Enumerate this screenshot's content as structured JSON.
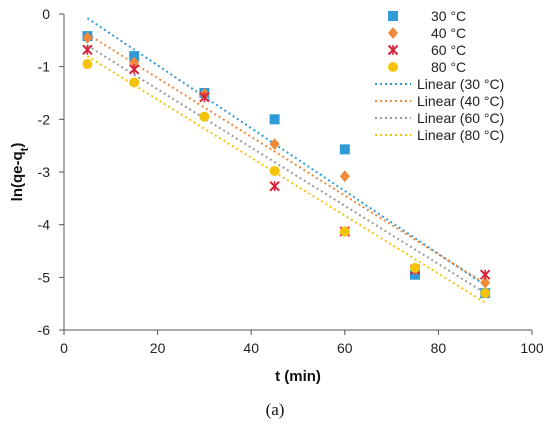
{
  "chart_data": {
    "type": "scatter",
    "xlabel": "t (min)",
    "ylabel": "ln(qe-qt)",
    "xlim": [
      0,
      100
    ],
    "ylim": [
      -6,
      0
    ],
    "x_ticks": [
      0,
      20,
      40,
      60,
      80,
      100
    ],
    "y_ticks": [
      0,
      -1,
      -2,
      -3,
      -4,
      -5,
      -6
    ],
    "grid": false,
    "legend_position": "top-right",
    "series": [
      {
        "name": "30 °C",
        "marker": "square",
        "color": "#2e9bd6",
        "x": [
          5,
          15,
          30,
          45,
          60,
          75,
          90
        ],
        "y": [
          -0.42,
          -0.8,
          -1.5,
          -2.0,
          -2.57,
          -4.95,
          -5.3
        ]
      },
      {
        "name": "40 °C",
        "marker": "diamond",
        "color": "#f08a3a",
        "x": [
          5,
          15,
          30,
          45,
          60,
          75,
          90
        ],
        "y": [
          -0.45,
          -0.92,
          -1.52,
          -2.47,
          -3.08,
          -4.85,
          -5.1
        ]
      },
      {
        "name": "60 °C",
        "marker": "asterisk",
        "color": "#d9203a",
        "x": [
          5,
          15,
          30,
          45,
          60,
          75,
          90
        ],
        "y": [
          -0.68,
          -1.05,
          -1.58,
          -3.27,
          -4.13,
          -4.85,
          -4.95
        ]
      },
      {
        "name": "80 °C",
        "marker": "circle",
        "color": "#f5c30a",
        "x": [
          5,
          15,
          30,
          45,
          60,
          75,
          90
        ],
        "y": [
          -0.95,
          -1.3,
          -1.95,
          -2.98,
          -4.13,
          -4.82,
          -5.3
        ]
      }
    ],
    "trendlines": [
      {
        "name": "Linear (30 °C)",
        "color": "#2e9bd6",
        "x": [
          5,
          90
        ],
        "y": [
          -0.08,
          -5.15
        ]
      },
      {
        "name": "Linear (40 °C)",
        "color": "#f08a3a",
        "x": [
          5,
          90
        ],
        "y": [
          -0.38,
          -5.12
        ]
      },
      {
        "name": "Linear (60 °C)",
        "color": "#9a9a9a",
        "x": [
          5,
          90
        ],
        "y": [
          -0.6,
          -5.3
        ]
      },
      {
        "name": "Linear (80 °C)",
        "color": "#f5c30a",
        "x": [
          5,
          90
        ],
        "y": [
          -0.8,
          -5.48
        ]
      }
    ]
  },
  "caption": "(a)"
}
